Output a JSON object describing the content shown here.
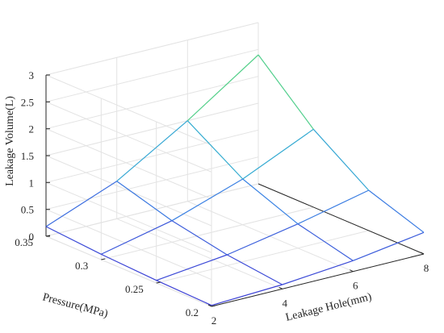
{
  "chart_data": {
    "type": "surface",
    "title": "",
    "xlabel": "Leakage Hole(mm)",
    "ylabel": "Pressure(MPa)",
    "zlabel": "Leakage Volume(L)",
    "x_ticks": [
      "2",
      "4",
      "6",
      "8"
    ],
    "y_ticks": [
      "0.2",
      "0.25",
      "0.3",
      "0.35"
    ],
    "z_ticks": [
      "0",
      "0.5",
      "1",
      "1.5",
      "2",
      "2.5",
      "3"
    ],
    "xlim": [
      2,
      8
    ],
    "ylim": [
      0.2,
      0.35
    ],
    "zlim": [
      0,
      3
    ],
    "grid": true,
    "colormap": [
      "#3b3bd4",
      "#3a8ee6",
      "#2fc3c0",
      "#6cd866",
      "#f2c93a"
    ],
    "x": [
      2,
      4,
      6,
      8
    ],
    "y": [
      0.2,
      0.25,
      0.3,
      0.35
    ],
    "z": [
      [
        0.02,
        0.08,
        0.2,
        0.4
      ],
      [
        0.05,
        0.2,
        0.45,
        0.75
      ],
      [
        0.1,
        0.4,
        0.85,
        1.45
      ],
      [
        0.18,
        0.7,
        1.5,
        2.4
      ]
    ]
  }
}
